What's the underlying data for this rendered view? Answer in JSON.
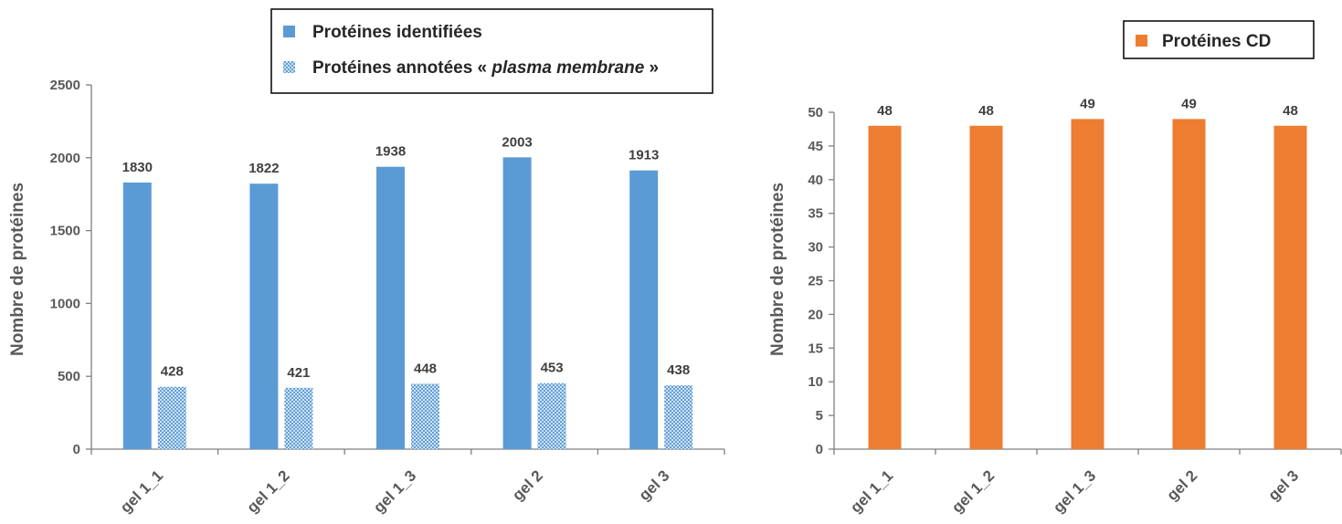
{
  "chart_data": [
    {
      "type": "bar",
      "categories": [
        "gel 1_1",
        "gel 1_2",
        "gel 1_3",
        "gel 2",
        "gel 3"
      ],
      "series": [
        {
          "name": "Protéines identifiées",
          "values": [
            1830,
            1822,
            1938,
            2003,
            1913
          ],
          "color": "#5B9BD5",
          "pattern": "solid"
        },
        {
          "name": "Protéines annotées « plasma membrane »",
          "values": [
            428,
            421,
            448,
            453,
            438
          ],
          "color": "#5B9BD5",
          "pattern": "crosshatch"
        }
      ],
      "legend": {
        "entries": [
          {
            "text": "Protéines identifiées"
          },
          {
            "prefix": "Protéines annotées « ",
            "italic": "plasma membrane",
            "suffix": " »"
          }
        ],
        "placement": "top-right"
      },
      "title": "",
      "xlabel": "",
      "ylabel": "Nombre de protéines",
      "ylim": [
        0,
        2500
      ],
      "yticks": [
        "0",
        "500",
        "1000",
        "1500",
        "2000",
        "2500"
      ],
      "data_labels": true,
      "grid": false
    },
    {
      "type": "bar",
      "categories": [
        "gel 1_1",
        "gel 1_2",
        "gel 1_3",
        "gel 2",
        "gel 3"
      ],
      "series": [
        {
          "name": "Protéines CD",
          "values": [
            48,
            48,
            49,
            49,
            48
          ],
          "color": "#ED7D31"
        }
      ],
      "legend": {
        "entries": [
          {
            "text": "Protéines CD"
          }
        ],
        "placement": "top-right"
      },
      "title": "",
      "xlabel": "",
      "ylabel": "Nombre de protéines",
      "ylim": [
        0,
        50
      ],
      "yticks": [
        "0",
        "5",
        "10",
        "15",
        "20",
        "25",
        "30",
        "35",
        "40",
        "45",
        "50"
      ],
      "data_labels": true,
      "grid": false
    }
  ]
}
